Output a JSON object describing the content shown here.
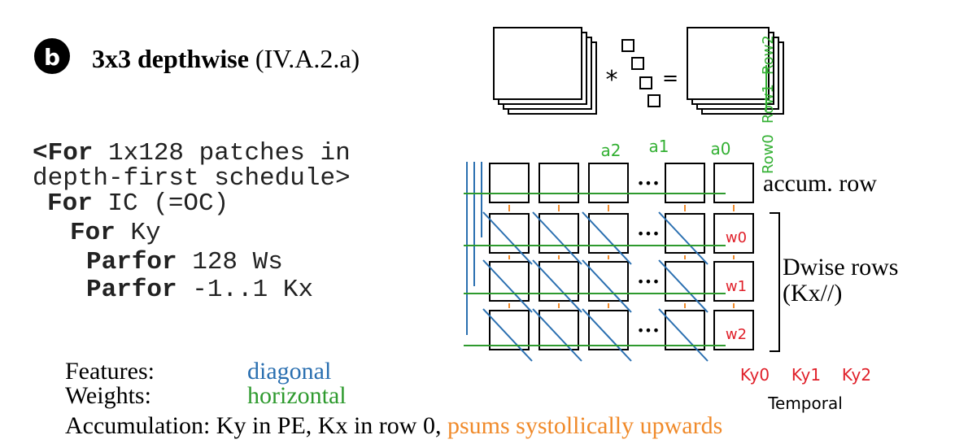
{
  "badge": {
    "letter": "b"
  },
  "heading": {
    "bold": "3x3 depthwise",
    "ref": "(IV.A.2.a)"
  },
  "code": {
    "line1": {
      "kw": "<For",
      "rest": " 1x128 patches in"
    },
    "line2": {
      "rest": "depth-first schedule>"
    },
    "line3": {
      "kw": "For",
      "rest": " IC (=OC)"
    },
    "line4": {
      "kw": "For",
      "rest": " Ky"
    },
    "line5": {
      "kw": "Parfor",
      "rest": " 128 Ws"
    },
    "line6": {
      "kw": "Parfor",
      "rest": " -1..1 Kx"
    }
  },
  "conv": {
    "op_star": "*",
    "op_eq": "=",
    "row_labels": [
      "Row2",
      "Row1",
      "Row0"
    ]
  },
  "grid": {
    "activation_labels": [
      "a2",
      "a1",
      "a0"
    ],
    "ellipsis": "•••",
    "weight_labels": [
      "w0",
      "w1",
      "w2"
    ],
    "accum_label": "accum. row",
    "dwise_label_1": "Dwise rows",
    "dwise_label_2": "(Kx//)",
    "ky_labels": [
      "Ky0",
      "Ky1",
      "Ky2"
    ],
    "temporal_label": "Temporal"
  },
  "legend": {
    "features_key": "Features:",
    "features_val": "diagonal",
    "weights_key": "Weights:",
    "weights_val": "horizontal",
    "accum_key": "Accumulation:",
    "accum_val": "Ky in PE, Kx in row 0,",
    "accum_psums": "psums systollically upwards"
  },
  "colors": {
    "features": "#2a6fb0",
    "weights": "#2e9a2e",
    "psums": "#f08a2a",
    "weight_label": "#e0202a",
    "activation_label": "#33b033"
  }
}
